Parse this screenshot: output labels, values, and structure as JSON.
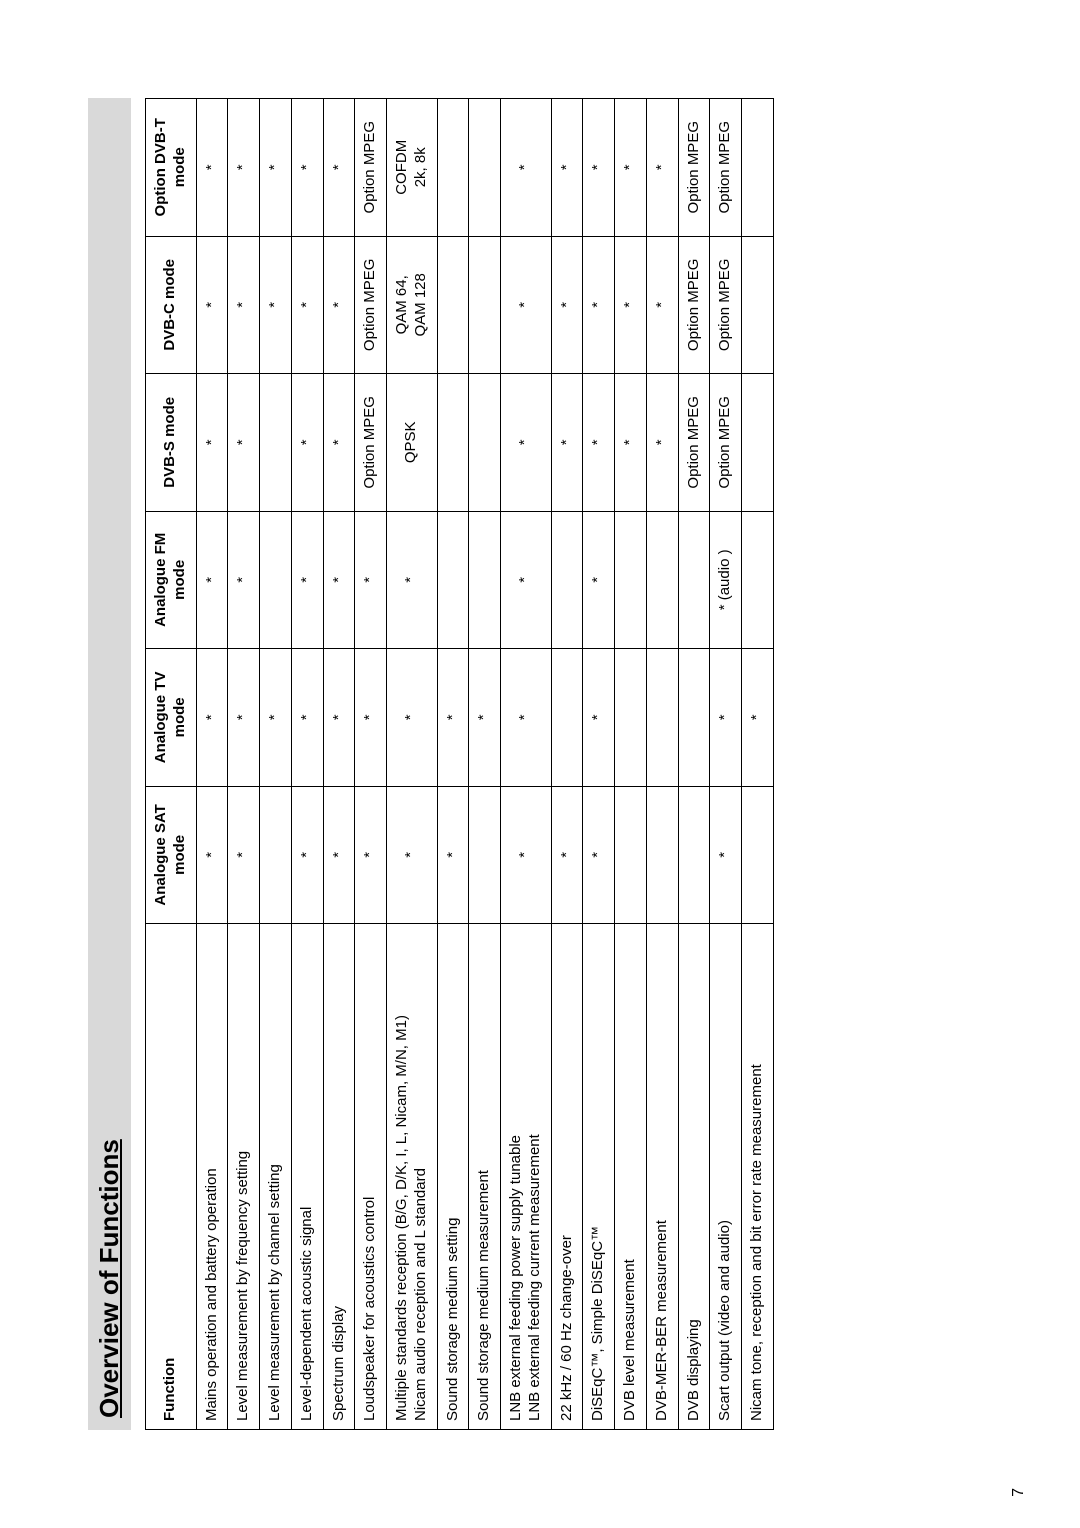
{
  "title": "Overview of Functions",
  "page_number": "7",
  "columns": [
    "Function",
    "Analogue SAT mode",
    "Analogue TV mode",
    "Analogue FM mode",
    "DVB-S mode",
    "DVB-C mode",
    "Option DVB-T mode"
  ],
  "rows": [
    {
      "fn": "Mains operation and battery operation",
      "c": [
        "*",
        "*",
        "*",
        "*",
        "*",
        "*"
      ]
    },
    {
      "fn": "Level measurement by frequency setting",
      "c": [
        "*",
        "*",
        "*",
        "*",
        "*",
        "*"
      ]
    },
    {
      "fn": "Level measurement by channel setting",
      "c": [
        "",
        "*",
        "",
        "",
        "*",
        "*"
      ]
    },
    {
      "fn": "Level-dependent acoustic signal",
      "c": [
        "*",
        "*",
        "*",
        "*",
        "*",
        "*"
      ]
    },
    {
      "fn": "Spectrum display",
      "c": [
        "*",
        "*",
        "*",
        "*",
        "*",
        "*"
      ]
    },
    {
      "fn": "Loudspeaker for acoustics control",
      "c": [
        "*",
        "*",
        "*",
        "Option MPEG",
        "Option MPEG",
        "Option MPEG"
      ]
    },
    {
      "fn": "Multiple standards reception (B/G, D/K, I, L, Nicam, M/N, M1)\nNicam audio reception and L standard",
      "c": [
        "*",
        "*",
        "*",
        "QPSK",
        "QAM 64,\nQAM 128",
        "COFDM\n2k, 8k"
      ]
    },
    {
      "fn": "Sound storage medium setting",
      "c": [
        "*",
        "*",
        "",
        "",
        "",
        ""
      ]
    },
    {
      "fn": "Sound storage medium measurement",
      "c": [
        "",
        "*",
        "",
        "",
        "",
        ""
      ]
    },
    {
      "fn": "LNB external feeding power supply tunable\nLNB external feeding current measurement",
      "c": [
        "*",
        "*",
        "*",
        "*",
        "*",
        "*"
      ]
    },
    {
      "fn": "22 kHz / 60 Hz change-over",
      "c": [
        "*",
        "",
        "",
        "*",
        "*",
        "*"
      ]
    },
    {
      "fn": "DiSEqC™, Simple DiSEqC™",
      "c": [
        "*",
        "*",
        "*",
        "*",
        "*",
        "*"
      ]
    },
    {
      "fn": "DVB level measurement",
      "c": [
        "",
        "",
        "",
        "*",
        "*",
        "*"
      ]
    },
    {
      "fn": "DVB-MER-BER measurement",
      "c": [
        "",
        "",
        "",
        "*",
        "*",
        "*"
      ]
    },
    {
      "fn": "DVB displaying",
      "c": [
        "",
        "",
        "",
        "Option MPEG",
        "Option MPEG",
        "Option MPEG"
      ]
    },
    {
      "fn": "Scart output (video and audio)",
      "c": [
        "*",
        "*",
        "* (audio )",
        "Option MPEG",
        "Option MPEG",
        "Option MPEG"
      ]
    },
    {
      "fn": "Nicam tone, reception and bit error rate measurement",
      "c": [
        "",
        "*",
        "",
        "",
        "",
        ""
      ]
    }
  ],
  "style": {
    "header_bg": "#d9d9d9",
    "border_color": "#000000",
    "font_family": "Arial",
    "title_fontsize": 26,
    "cell_fontsize": 15
  }
}
